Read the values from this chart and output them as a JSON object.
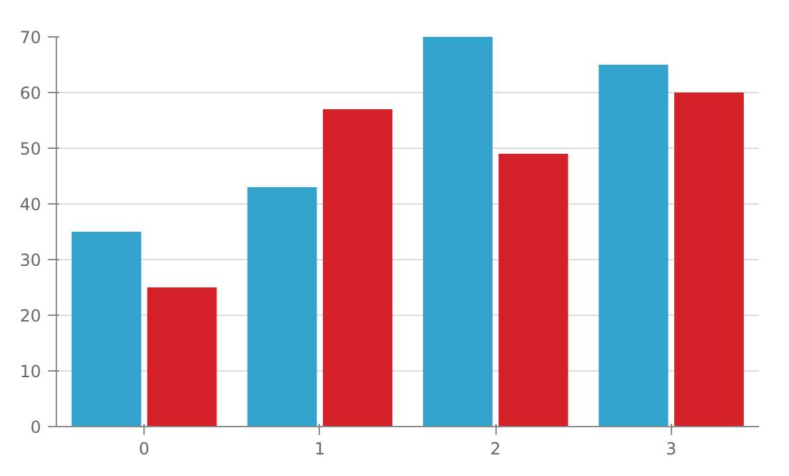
{
  "chart_data": {
    "type": "bar",
    "categories": [
      "0",
      "1",
      "2",
      "3"
    ],
    "series": [
      {
        "color": "#31a3cc",
        "values": [
          35,
          43,
          70,
          65
        ]
      },
      {
        "color": "#d42027",
        "values": [
          25,
          57,
          49,
          60
        ]
      }
    ],
    "ylim": [
      0,
      70
    ],
    "yticks": [
      0,
      10,
      20,
      30,
      40,
      50,
      60,
      70
    ],
    "grid": "y"
  }
}
